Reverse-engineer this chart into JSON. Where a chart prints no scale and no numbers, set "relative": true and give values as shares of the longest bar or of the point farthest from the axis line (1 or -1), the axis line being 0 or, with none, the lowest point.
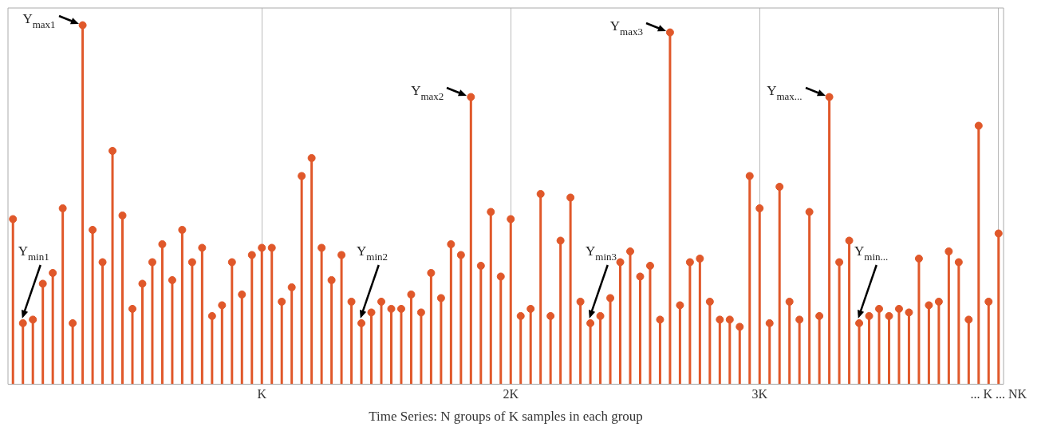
{
  "chart_data": {
    "type": "lollipop",
    "relative": true,
    "xlabel": "Time Series: N groups of K samples in each group",
    "categories": [
      null,
      null,
      null,
      null,
      null,
      null,
      null,
      null,
      null,
      null,
      null,
      null,
      null,
      null,
      null,
      null,
      null,
      null,
      null,
      null,
      null,
      null,
      null,
      null,
      null,
      "K",
      null,
      null,
      null,
      null,
      null,
      null,
      null,
      null,
      null,
      null,
      null,
      null,
      null,
      null,
      null,
      null,
      null,
      null,
      null,
      null,
      null,
      null,
      null,
      null,
      "2K",
      null,
      null,
      null,
      null,
      null,
      null,
      null,
      null,
      null,
      null,
      null,
      null,
      null,
      null,
      null,
      null,
      null,
      null,
      null,
      null,
      null,
      null,
      null,
      null,
      "3K",
      null,
      null,
      null,
      null,
      null,
      null,
      null,
      null,
      null,
      null,
      null,
      null,
      null,
      null,
      null,
      null,
      null,
      null,
      null,
      null,
      null,
      null,
      null,
      "... K ... NK"
    ],
    "values": [
      0.46,
      0.17,
      0.18,
      0.28,
      0.31,
      0.49,
      0.17,
      1,
      0.43,
      0.34,
      0.65,
      0.47,
      0.21,
      0.28,
      0.34,
      0.39,
      0.29,
      0.43,
      0.34,
      0.38,
      0.19,
      0.22,
      0.34,
      0.25,
      0.36,
      0.38,
      0.38,
      0.23,
      0.27,
      0.58,
      0.63,
      0.38,
      0.29,
      0.36,
      0.23,
      0.17,
      0.2,
      0.23,
      0.21,
      0.21,
      0.25,
      0.2,
      0.31,
      0.24,
      0.39,
      0.36,
      0.8,
      0.33,
      0.48,
      0.3,
      0.46,
      0.19,
      0.21,
      0.53,
      0.19,
      0.4,
      0.52,
      0.23,
      0.17,
      0.19,
      0.24,
      0.34,
      0.37,
      0.3,
      0.33,
      0.18,
      0.98,
      0.22,
      0.34,
      0.35,
      0.23,
      0.18,
      0.18,
      0.16,
      0.58,
      0.49,
      0.17,
      0.55,
      0.23,
      0.18,
      0.48,
      0.19,
      0.8,
      0.34,
      0.4,
      0.17,
      0.19,
      0.21,
      0.19,
      0.21,
      0.2,
      0.35,
      0.22,
      0.23,
      0.37,
      0.34,
      0.18,
      0.72,
      0.23,
      0.42
    ],
    "color": "#e0582a",
    "grid": "x",
    "marker": "circle",
    "annotations": [
      "Y$_{max1}$",
      "Y$_{min1}$",
      "Y$_{max2}$",
      "Y$_{min2}$",
      "Y$_{max3}$",
      "Y$_{min3}$",
      "Y$_{max...}$",
      "Y$_{min...}$"
    ]
  }
}
